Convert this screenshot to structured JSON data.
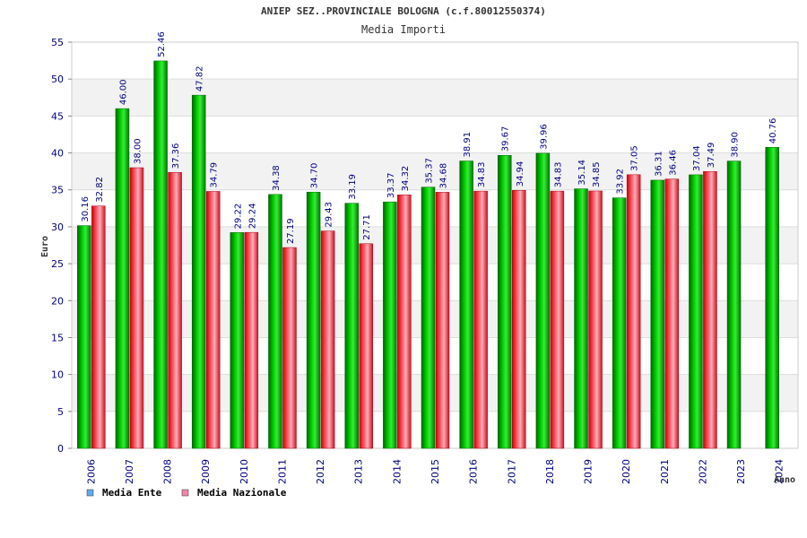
{
  "chart_data": {
    "type": "bar",
    "title": "ANIEP SEZ..PROVINCIALE BOLOGNA (c.f.80012550374)",
    "subtitle": "Media Importi",
    "ylabel": "Euro",
    "xlabel": "Anno",
    "ylim": [
      0,
      55
    ],
    "yticks": [
      "0",
      "5",
      "10",
      "15",
      "20",
      "25",
      "30",
      "35",
      "40",
      "45",
      "50",
      "55"
    ],
    "categories": [
      "2006",
      "2007",
      "2008",
      "2009",
      "2010",
      "2011",
      "2012",
      "2013",
      "2014",
      "2015",
      "2016",
      "2017",
      "2018",
      "2019",
      "2020",
      "2021",
      "2022",
      "2023",
      "2024"
    ],
    "series": [
      {
        "name": "Media Ente",
        "color": "#00bb00",
        "values": [
          30.16,
          46.0,
          52.46,
          47.82,
          29.22,
          34.38,
          34.7,
          33.19,
          33.37,
          35.37,
          38.91,
          39.67,
          39.96,
          35.14,
          33.92,
          36.31,
          37.04,
          38.9,
          40.76
        ],
        "labels": [
          "30.16",
          "46.00",
          "52.46",
          "47.82",
          "29.22",
          "34.38",
          "34.70",
          "33.19",
          "33.37",
          "35.37",
          "38.91",
          "39.67",
          "39.96",
          "35.14",
          "33.92",
          "36.31",
          "37.04",
          "38.90",
          "40.76"
        ]
      },
      {
        "name": "Media Nazionale",
        "color": "#ee2233",
        "values": [
          32.82,
          38.0,
          37.36,
          34.79,
          29.24,
          27.19,
          29.43,
          27.71,
          34.32,
          34.68,
          34.83,
          34.94,
          34.83,
          34.85,
          37.05,
          36.46,
          37.49,
          null,
          null
        ],
        "labels": [
          "32.82",
          "38.00",
          "37.36",
          "34.79",
          "29.24",
          "27.19",
          "29.43",
          "27.71",
          "34.32",
          "34.68",
          "34.83",
          "34.94",
          "34.83",
          "34.85",
          "37.05",
          "36.46",
          "37.49",
          "",
          ""
        ]
      }
    ],
    "legend": {
      "placement": "bottom-left",
      "items": [
        {
          "label": "Media Ente",
          "color": "#66aaee"
        },
        {
          "label": "Media Nazionale",
          "color": "#ee88aa"
        }
      ]
    },
    "grid": true
  }
}
